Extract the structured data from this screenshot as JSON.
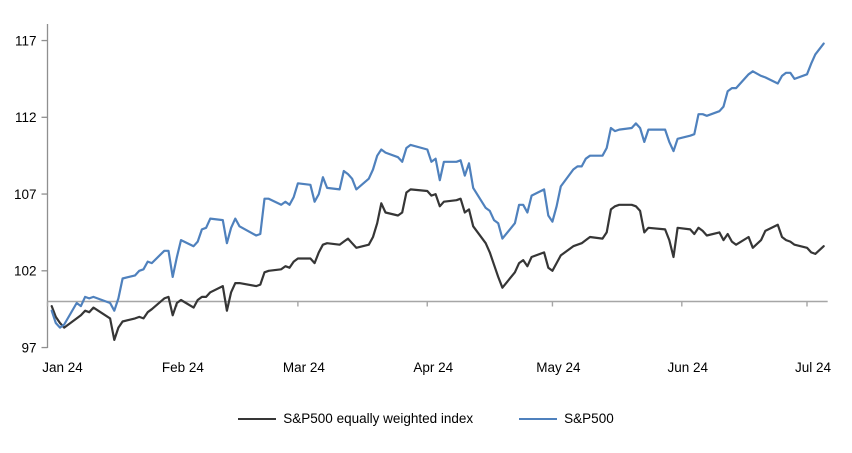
{
  "chart_data": {
    "type": "line",
    "title": "",
    "xlabel": "",
    "ylabel": "",
    "grid": false,
    "legend_position": "bottom-center",
    "y_axis": {
      "min": 97,
      "max": 117,
      "ticks": [
        97,
        102,
        107,
        112,
        117
      ],
      "baseline_value": 100
    },
    "x_axis": {
      "tick_labels": [
        "Jan 24",
        "Feb 24",
        "Mar 24",
        "Apr 24",
        "May 24",
        "Jun 24",
        "Jul 24"
      ],
      "tick_dates": [
        "2024-01-01",
        "2024-02-01",
        "2024-03-01",
        "2024-04-01",
        "2024-05-01",
        "2024-06-01",
        "2024-07-01"
      ]
    },
    "dates": [
      "2024-01-02",
      "2024-01-03",
      "2024-01-04",
      "2024-01-05",
      "2024-01-08",
      "2024-01-09",
      "2024-01-10",
      "2024-01-11",
      "2024-01-12",
      "2024-01-16",
      "2024-01-17",
      "2024-01-18",
      "2024-01-19",
      "2024-01-22",
      "2024-01-23",
      "2024-01-24",
      "2024-01-25",
      "2024-01-26",
      "2024-01-29",
      "2024-01-30",
      "2024-01-31",
      "2024-02-01",
      "2024-02-02",
      "2024-02-05",
      "2024-02-06",
      "2024-02-07",
      "2024-02-08",
      "2024-02-09",
      "2024-02-12",
      "2024-02-13",
      "2024-02-14",
      "2024-02-15",
      "2024-02-16",
      "2024-02-20",
      "2024-02-21",
      "2024-02-22",
      "2024-02-23",
      "2024-02-26",
      "2024-02-27",
      "2024-02-28",
      "2024-02-29",
      "2024-03-01",
      "2024-03-04",
      "2024-03-05",
      "2024-03-06",
      "2024-03-07",
      "2024-03-08",
      "2024-03-11",
      "2024-03-12",
      "2024-03-13",
      "2024-03-14",
      "2024-03-15",
      "2024-03-18",
      "2024-03-19",
      "2024-03-20",
      "2024-03-21",
      "2024-03-22",
      "2024-03-25",
      "2024-03-26",
      "2024-03-27",
      "2024-03-28",
      "2024-04-01",
      "2024-04-02",
      "2024-04-03",
      "2024-04-04",
      "2024-04-05",
      "2024-04-08",
      "2024-04-09",
      "2024-04-10",
      "2024-04-11",
      "2024-04-12",
      "2024-04-15",
      "2024-04-16",
      "2024-04-17",
      "2024-04-18",
      "2024-04-19",
      "2024-04-22",
      "2024-04-23",
      "2024-04-24",
      "2024-04-25",
      "2024-04-26",
      "2024-04-29",
      "2024-04-30",
      "2024-05-01",
      "2024-05-02",
      "2024-05-03",
      "2024-05-06",
      "2024-05-07",
      "2024-05-08",
      "2024-05-09",
      "2024-05-10",
      "2024-05-13",
      "2024-05-14",
      "2024-05-15",
      "2024-05-16",
      "2024-05-17",
      "2024-05-20",
      "2024-05-21",
      "2024-05-22",
      "2024-05-23",
      "2024-05-24",
      "2024-05-28",
      "2024-05-29",
      "2024-05-30",
      "2024-05-31",
      "2024-06-03",
      "2024-06-04",
      "2024-06-05",
      "2024-06-06",
      "2024-06-07",
      "2024-06-10",
      "2024-06-11",
      "2024-06-12",
      "2024-06-13",
      "2024-06-14",
      "2024-06-17",
      "2024-06-18",
      "2024-06-20",
      "2024-06-21",
      "2024-06-24",
      "2024-06-25",
      "2024-06-26",
      "2024-06-27",
      "2024-06-28",
      "2024-07-01",
      "2024-07-02",
      "2024-07-03",
      "2024-07-05"
    ],
    "series": [
      {
        "name": "S&P500 equally weighted index",
        "color": "#363636",
        "values": [
          99.7,
          99.0,
          98.6,
          98.3,
          98.9,
          99.1,
          99.4,
          99.3,
          99.6,
          98.9,
          97.5,
          98.3,
          98.7,
          98.9,
          99.0,
          98.9,
          99.3,
          99.5,
          100.2,
          100.3,
          99.1,
          99.9,
          100.1,
          99.6,
          100.1,
          100.3,
          100.3,
          100.6,
          101.0,
          99.4,
          100.6,
          101.2,
          101.2,
          101.0,
          101.1,
          101.9,
          102.0,
          102.1,
          102.3,
          102.2,
          102.6,
          102.8,
          102.8,
          102.5,
          103.2,
          103.7,
          103.8,
          103.7,
          103.9,
          104.1,
          103.8,
          103.5,
          103.7,
          104.2,
          105.1,
          106.4,
          105.8,
          105.6,
          105.8,
          107.1,
          107.3,
          107.2,
          106.9,
          107.0,
          106.2,
          106.5,
          106.6,
          106.7,
          105.8,
          106.0,
          104.9,
          103.8,
          103.2,
          102.4,
          101.6,
          100.9,
          101.9,
          102.5,
          102.7,
          102.3,
          102.9,
          103.2,
          102.2,
          102.0,
          102.5,
          103.0,
          103.6,
          103.7,
          103.8,
          104.0,
          104.2,
          104.1,
          104.5,
          106.0,
          106.2,
          106.3,
          106.3,
          106.2,
          105.9,
          104.5,
          104.8,
          104.7,
          104.0,
          102.9,
          104.8,
          104.7,
          104.4,
          104.8,
          104.6,
          104.3,
          104.5,
          104.0,
          104.4,
          103.9,
          103.7,
          104.2,
          103.5,
          104.0,
          104.6,
          105.0,
          104.2,
          104.0,
          103.9,
          103.7,
          103.5,
          103.2,
          103.1,
          103.6
        ]
      },
      {
        "name": "S&P500",
        "color": "#4f81bd",
        "values": [
          99.4,
          98.6,
          98.3,
          98.5,
          99.9,
          99.7,
          100.3,
          100.2,
          100.3,
          99.9,
          99.4,
          100.2,
          101.5,
          101.7,
          102.0,
          102.1,
          102.6,
          102.5,
          103.3,
          103.3,
          101.6,
          102.9,
          104.0,
          103.6,
          103.9,
          104.7,
          104.8,
          105.4,
          105.3,
          103.8,
          104.8,
          105.4,
          104.9,
          104.3,
          104.4,
          106.7,
          106.7,
          106.3,
          106.5,
          106.3,
          106.8,
          107.7,
          107.6,
          106.5,
          107.0,
          108.1,
          107.4,
          107.3,
          108.5,
          108.3,
          108.0,
          107.3,
          108.0,
          108.6,
          109.5,
          109.9,
          109.7,
          109.4,
          109.1,
          110.0,
          110.2,
          109.9,
          109.1,
          109.3,
          107.9,
          109.1,
          109.1,
          109.2,
          108.2,
          109.0,
          107.4,
          106.1,
          105.9,
          105.3,
          105.1,
          104.1,
          105.1,
          106.3,
          106.3,
          105.8,
          106.9,
          107.3,
          105.6,
          105.2,
          106.2,
          107.5,
          108.6,
          108.8,
          108.8,
          109.3,
          109.5,
          109.5,
          110.0,
          111.3,
          111.1,
          111.2,
          111.3,
          111.6,
          111.3,
          110.4,
          111.2,
          111.2,
          110.4,
          109.8,
          110.6,
          110.8,
          110.9,
          112.2,
          112.2,
          112.1,
          112.4,
          112.7,
          113.7,
          113.9,
          113.9,
          114.8,
          115.0,
          114.7,
          114.6,
          114.2,
          114.7,
          114.9,
          114.9,
          114.5,
          114.8,
          115.5,
          116.1,
          116.8
        ]
      }
    ],
    "axis_colors": {
      "y_axis": "#8f8f8f",
      "baseline": "#a6a6a6",
      "tick_label": "#000000"
    }
  }
}
